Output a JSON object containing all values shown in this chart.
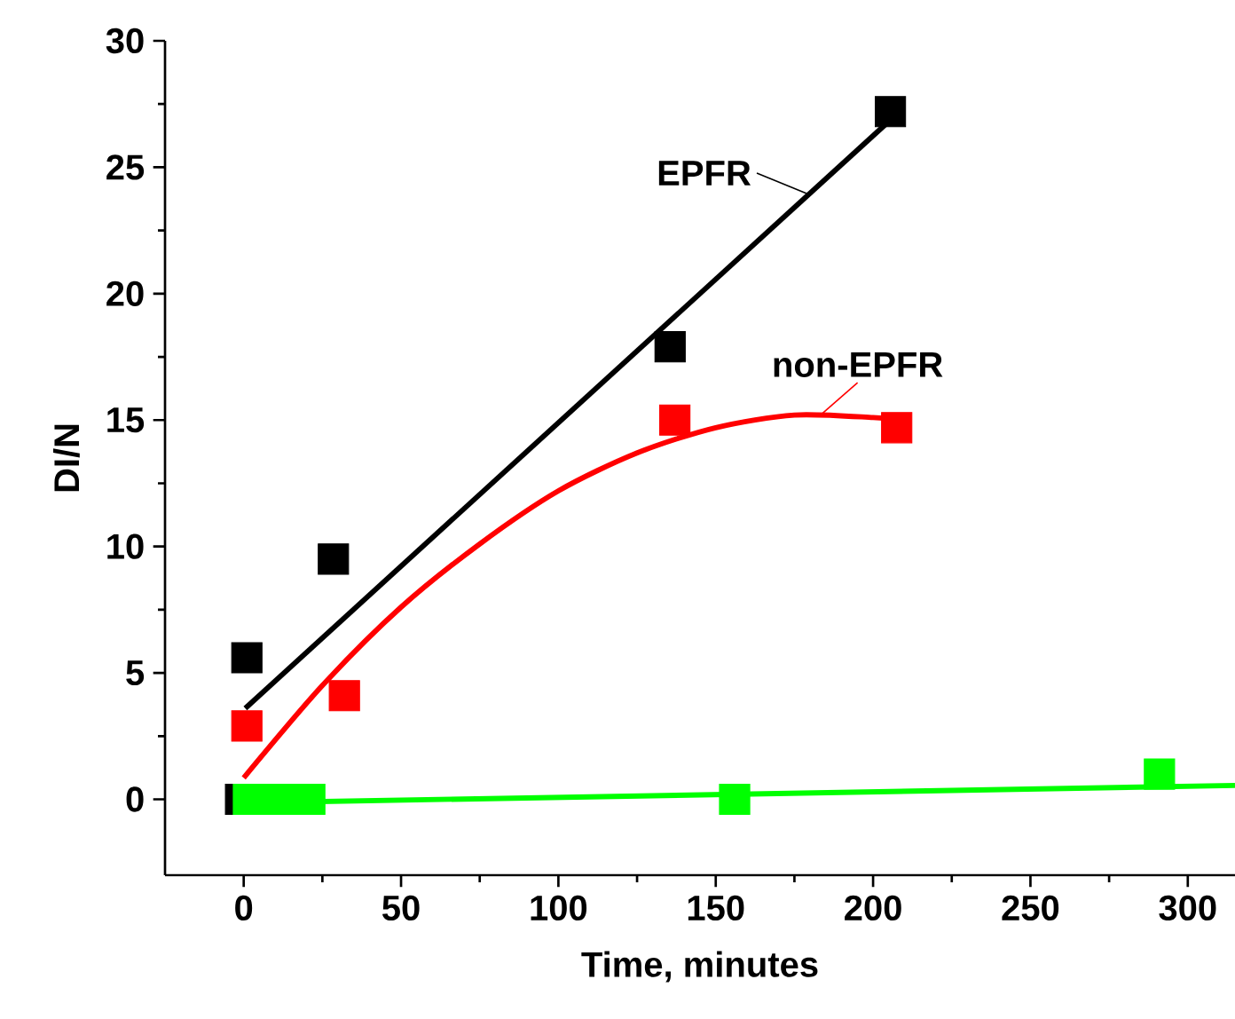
{
  "chart_data": {
    "type": "scatter",
    "xlabel": "Time, minutes",
    "ylabel": "DI/N",
    "xlim": [
      -25,
      315
    ],
    "ylim": [
      -3,
      30
    ],
    "xticks": [
      0,
      50,
      100,
      150,
      200,
      250,
      300
    ],
    "yticks": [
      0,
      5,
      10,
      15,
      20,
      25,
      30
    ],
    "series": [
      {
        "marker": "square",
        "color": "#000000",
        "x": [
          -1,
          1,
          28.5,
          135.5,
          205.5
        ],
        "values": [
          0,
          5.6,
          9.5,
          17.9,
          27.2
        ]
      },
      {
        "type": "line",
        "name": "EPFR",
        "color": "#000000",
        "x": [
          0.5,
          204
        ],
        "values": [
          3.6,
          26.7
        ]
      },
      {
        "marker": "square",
        "color": "#ff0000",
        "x": [
          1,
          32,
          137,
          207.5
        ],
        "values": [
          2.9,
          4.1,
          15,
          14.7
        ]
      },
      {
        "type": "line",
        "name": "non-EPFR",
        "color": "#ff0000",
        "x": [
          0,
          25,
          50,
          75,
          100,
          125,
          150,
          175,
          200,
          208
        ],
        "values": [
          0.85,
          4.5,
          7.6,
          10.1,
          12.2,
          13.7,
          14.7,
          15.2,
          15.1,
          15.0
        ]
      },
      {
        "marker": "square",
        "color": "#00ff00",
        "x": [
          1.5,
          7,
          14,
          21,
          156,
          291
        ],
        "values": [
          0,
          0,
          0,
          0,
          0,
          1.0
        ]
      },
      {
        "type": "line",
        "color": "#00ff00",
        "x": [
          -3,
          315
        ],
        "values": [
          -0.15,
          0.55
        ]
      }
    ]
  }
}
